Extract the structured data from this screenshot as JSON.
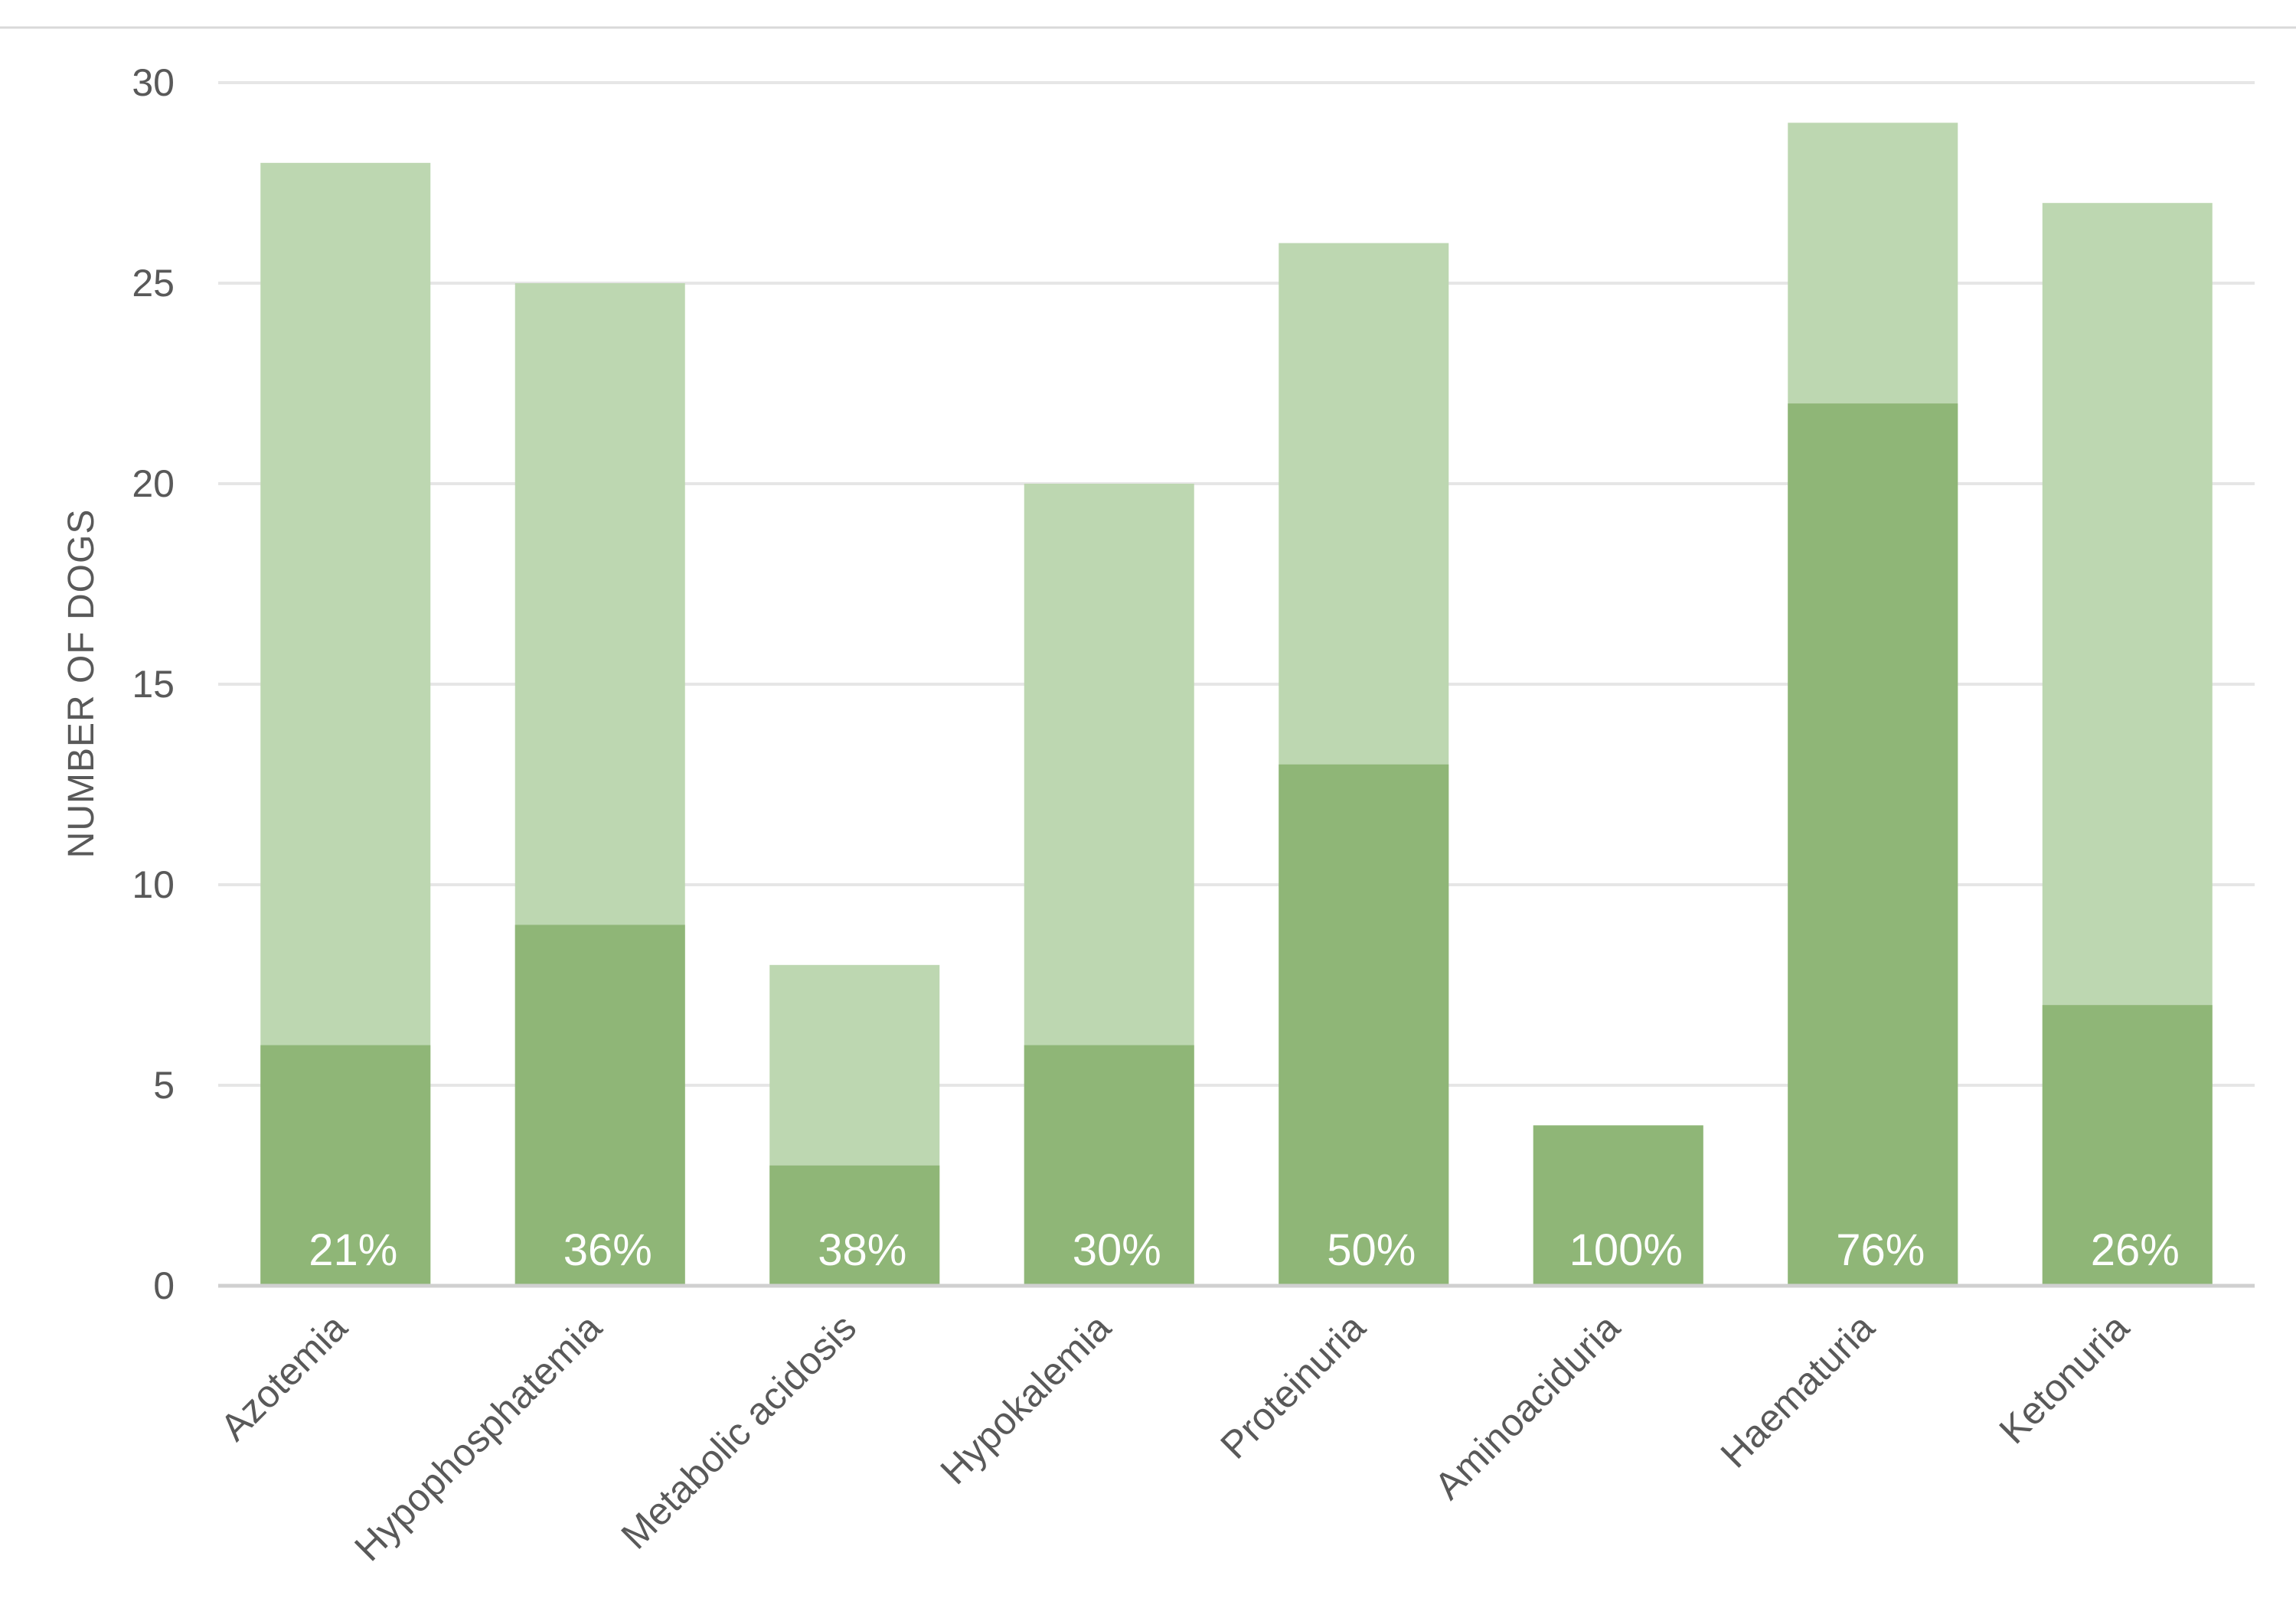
{
  "chart_data": {
    "type": "bar",
    "stacked_overlay": true,
    "ylabel": "NUMBER OF DOGS",
    "xlabel": "",
    "ylim": [
      0,
      30
    ],
    "yticks": [
      0,
      5,
      10,
      15,
      20,
      25,
      30
    ],
    "grid": true,
    "categories": [
      "Azotemia",
      "Hypophosphatemia",
      "Metabolic acidosis",
      "Hypokalemia",
      "Proteinuria",
      "Aminoaciduria",
      "Haematuria",
      "Ketonuria"
    ],
    "series": [
      {
        "values": [
          28,
          25,
          8,
          20,
          26,
          4,
          29,
          27
        ],
        "color": "#bdd7b1"
      },
      {
        "values": [
          6,
          9,
          3,
          6,
          13,
          4,
          22,
          7
        ],
        "color": "#8fb677"
      }
    ],
    "data_labels": [
      "21%",
      "36%",
      "38%",
      "30%",
      "50%",
      "100%",
      "76%",
      "26%"
    ],
    "colors": {
      "grid": "#e6e6e6",
      "baseline": "#d0d0d0",
      "text": "#595959"
    }
  }
}
